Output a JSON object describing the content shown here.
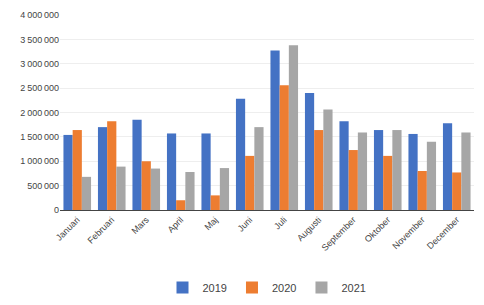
{
  "chart_data": {
    "type": "bar",
    "categories": [
      "Januari",
      "Februari",
      "Mars",
      "April",
      "Maj",
      "Juni",
      "Juli",
      "Augusti",
      "September",
      "Oktober",
      "November",
      "December"
    ],
    "series": [
      {
        "name": "2019",
        "color": "#4472C4",
        "values": [
          1540000,
          1700000,
          1850000,
          1570000,
          1570000,
          2280000,
          3270000,
          2400000,
          1820000,
          1640000,
          1560000,
          1780000
        ]
      },
      {
        "name": "2020",
        "color": "#ED7D31",
        "values": [
          1640000,
          1820000,
          1000000,
          200000,
          300000,
          1110000,
          2560000,
          1640000,
          1230000,
          1110000,
          800000,
          770000
        ]
      },
      {
        "name": "2021",
        "color": "#A6A6A6",
        "values": [
          680000,
          890000,
          850000,
          780000,
          860000,
          1700000,
          3380000,
          2060000,
          1590000,
          1640000,
          1400000,
          1590000
        ]
      }
    ],
    "ylim": [
      0,
      4000000
    ],
    "yticks": [
      0,
      {
        "value": 500000,
        "label": "500 000"
      },
      {
        "value": 1000000,
        "label": "1 000 000"
      },
      {
        "value": 1500000,
        "label": "1 500 000"
      },
      {
        "value": 2000000,
        "label": "2 000 000"
      },
      {
        "value": 2500000,
        "label": "2 500 000"
      },
      {
        "value": 3000000,
        "label": "3 000 000"
      },
      {
        "value": 3500000,
        "label": "3 500 000"
      },
      {
        "value": 4000000,
        "label": "4 000 000"
      }
    ],
    "grid": true,
    "legend": "bottom"
  }
}
